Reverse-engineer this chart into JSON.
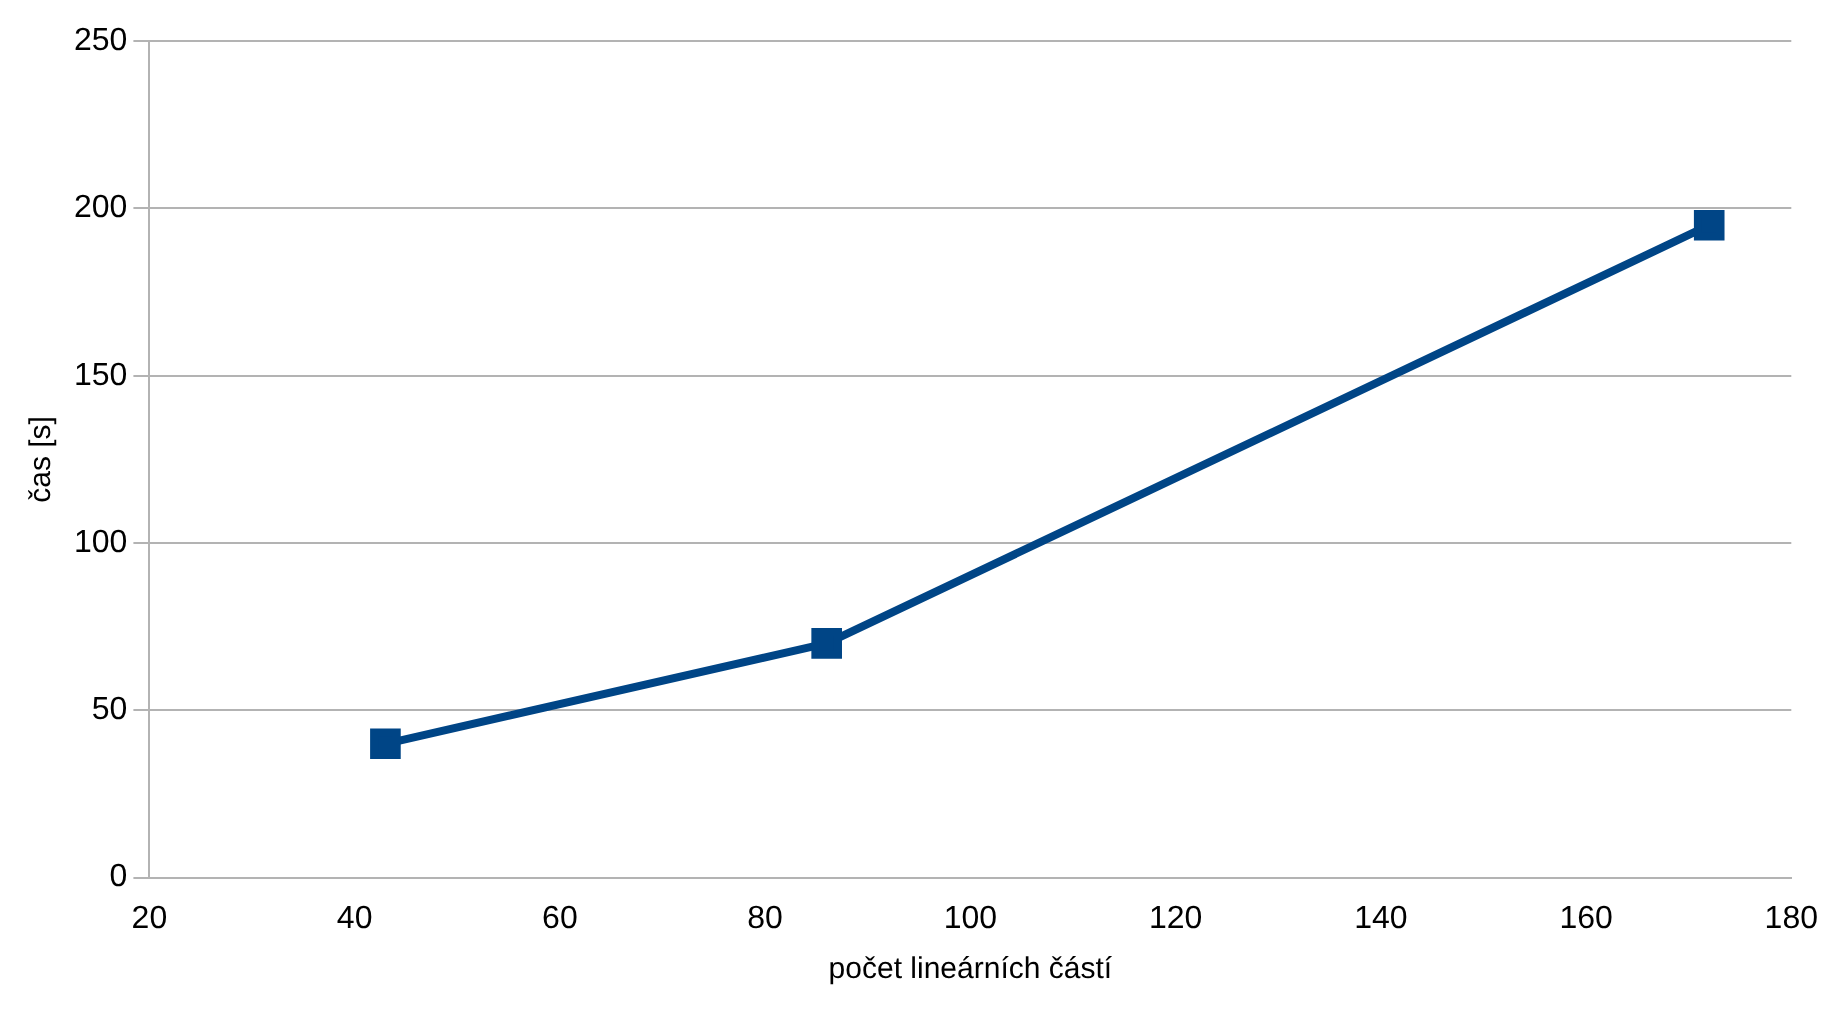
{
  "chart_data": {
    "type": "line",
    "xlabel": "počet lineárních částí",
    "ylabel": "čas [s]",
    "x": [
      43,
      86,
      172
    ],
    "series": [
      {
        "color": "#004586",
        "values": [
          40,
          70,
          195
        ]
      }
    ],
    "xlim": [
      20,
      180
    ],
    "xticks": [
      20,
      40,
      60,
      80,
      100,
      120,
      140,
      160,
      180
    ],
    "ylim": [
      0,
      250
    ],
    "yticks": [
      0,
      50,
      100,
      150,
      200,
      250
    ],
    "grid": "y",
    "legend": false,
    "marker": "square",
    "line_style": "solid"
  }
}
